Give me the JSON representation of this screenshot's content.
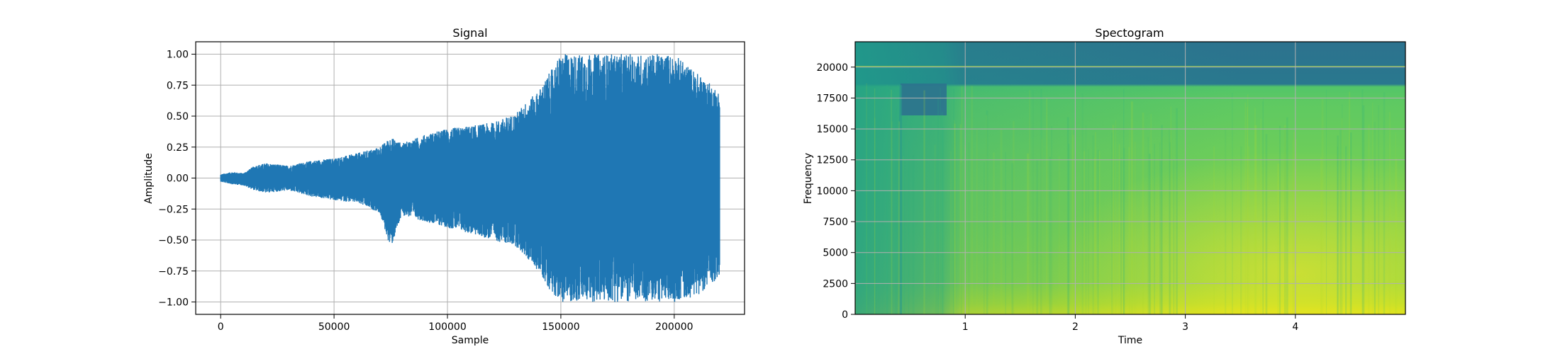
{
  "colors": {
    "signal_line": "#1f77b4",
    "grid": "#b0b0b0",
    "background": "#ffffff"
  },
  "chart_data": [
    {
      "type": "line",
      "title": "Signal",
      "xlabel": "Sample",
      "ylabel": "Amplitude",
      "xlim": [
        -11000,
        231000
      ],
      "ylim": [
        -1.1,
        1.1
      ],
      "xticks": [
        0,
        50000,
        100000,
        150000,
        200000
      ],
      "xtick_labels": [
        "0",
        "50000",
        "100000",
        "150000",
        "200000"
      ],
      "yticks": [
        1.0,
        0.75,
        0.5,
        0.25,
        0.0,
        -0.25,
        -0.5,
        -0.75,
        -1.0
      ],
      "ytick_labels": [
        "1.00",
        "0.75",
        "0.50",
        "0.25",
        "0.00",
        "−0.25",
        "−0.50",
        "−0.75",
        "−1.00"
      ],
      "grid": true,
      "series": [
        {
          "envelope": {
            "x": [
              0,
              5000,
              10000,
              15000,
              20000,
              30000,
              40000,
              50000,
              60000,
              70000,
              75000,
              80000,
              90000,
              100000,
              110000,
              120000,
              130000,
              135000,
              140000,
              145000,
              150000,
              160000,
              170000,
              180000,
              190000,
              200000,
              210000,
              220000
            ],
            "upper": [
              0.03,
              0.05,
              0.04,
              0.1,
              0.12,
              0.1,
              0.14,
              0.16,
              0.2,
              0.25,
              0.33,
              0.28,
              0.35,
              0.4,
              0.42,
              0.45,
              0.52,
              0.62,
              0.7,
              0.85,
              1.0,
              1.0,
              1.0,
              1.0,
              1.0,
              1.0,
              0.85,
              0.7
            ],
            "lower": [
              -0.03,
              -0.05,
              -0.06,
              -0.1,
              -0.12,
              -0.1,
              -0.15,
              -0.18,
              -0.2,
              -0.28,
              -0.57,
              -0.3,
              -0.35,
              -0.4,
              -0.45,
              -0.5,
              -0.55,
              -0.65,
              -0.75,
              -0.9,
              -1.0,
              -1.0,
              -1.0,
              -1.0,
              -1.0,
              -1.0,
              -0.95,
              -0.8
            ]
          }
        }
      ]
    },
    {
      "type": "heatmap",
      "title": "Spectogram",
      "xlabel": "Time",
      "ylabel": "Frequency",
      "xlim": [
        0,
        5.0
      ],
      "ylim": [
        0,
        22050
      ],
      "xticks": [
        1,
        2,
        3,
        4
      ],
      "xtick_labels": [
        "1",
        "2",
        "3",
        "4"
      ],
      "yticks": [
        0,
        2500,
        5000,
        7500,
        10000,
        12500,
        15000,
        17500,
        20000
      ],
      "ytick_labels": [
        "0",
        "2500",
        "5000",
        "7500",
        "10000",
        "12500",
        "15000",
        "17500",
        "20000"
      ],
      "grid": true,
      "colormap": "viridis",
      "bands": [
        {
          "f_min": 18500,
          "f_max": 22050,
          "level": 0.35
        },
        {
          "f_min": 0,
          "f_max": 2500,
          "level": 0.9
        }
      ]
    }
  ]
}
